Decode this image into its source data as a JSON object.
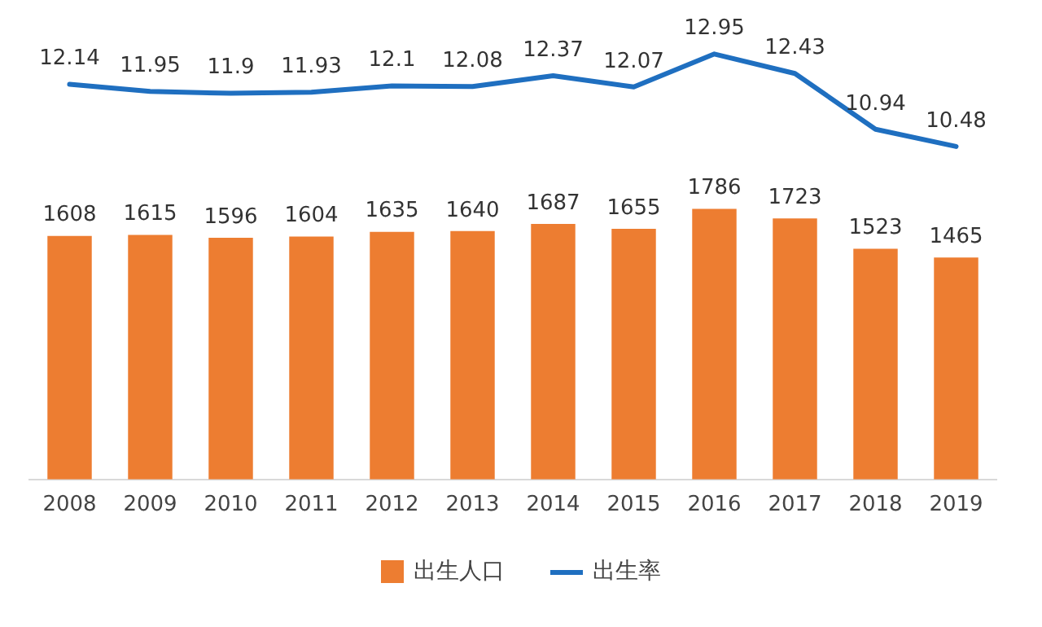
{
  "chart_data": [
    {
      "type": "line",
      "categories": [
        "2008",
        "2009",
        "2010",
        "2011",
        "2012",
        "2013",
        "2014",
        "2015",
        "2016",
        "2017",
        "2018",
        "2019"
      ],
      "series": [
        {
          "name": "出生率",
          "color": "#1f6fc0",
          "values": [
            12.14,
            11.95,
            11.9,
            11.93,
            12.1,
            12.08,
            12.37,
            12.07,
            12.95,
            12.43,
            10.94,
            10.48
          ]
        }
      ],
      "data_labels": true,
      "legend": "bottom",
      "grid": false,
      "marker": "none",
      "line_style": "solid",
      "tick_labels": false
    },
    {
      "type": "bar",
      "categories": [
        "2008",
        "2009",
        "2010",
        "2011",
        "2012",
        "2013",
        "2014",
        "2015",
        "2016",
        "2017",
        "2018",
        "2019"
      ],
      "series": [
        {
          "name": "出生人口",
          "color": "#ed7d31",
          "values": [
            1608,
            1615,
            1596,
            1604,
            1635,
            1640,
            1687,
            1655,
            1786,
            1723,
            1523,
            1465
          ]
        }
      ],
      "data_labels": true,
      "legend": "bottom",
      "grid": false,
      "tick_labels": "x"
    }
  ]
}
